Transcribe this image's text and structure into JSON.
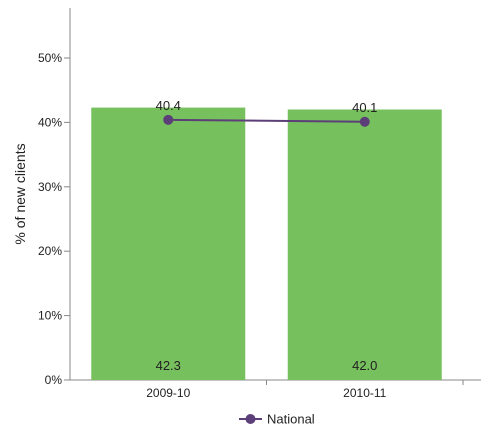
{
  "chart_data": {
    "type": "bar",
    "categories": [
      "2009-10",
      "2010-11"
    ],
    "series": [
      {
        "type": "bar",
        "values": [
          42.3,
          42.0
        ],
        "labels": [
          "42.3",
          "42.0"
        ],
        "color": "#77c05e"
      },
      {
        "name": "National",
        "type": "line",
        "values": [
          40.4,
          40.1
        ],
        "labels": [
          "40.4",
          "40.1"
        ],
        "color": "#5c3f78"
      }
    ],
    "ylabel": "% of new clients",
    "ylim": [
      0,
      55
    ],
    "yticks": [
      0,
      10,
      20,
      30,
      40,
      50
    ],
    "ytick_labels": [
      "0%",
      "10%",
      "20%",
      "30%",
      "40%",
      "50%"
    ],
    "grid": false,
    "legend": {
      "position": "bottom",
      "entries": [
        "National"
      ]
    }
  }
}
